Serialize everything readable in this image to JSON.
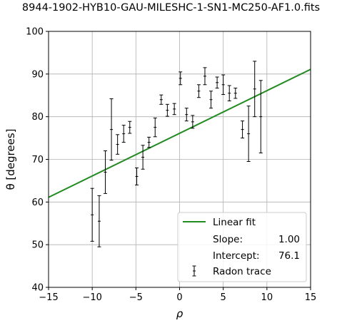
{
  "chart_data": {
    "type": "scatter",
    "title": "8944-1902-HYB10-GAU-MILESHC-1-SN1-MC250-AF1.0.fits",
    "xlabel": "ρ",
    "ylabel": "θ [degrees]",
    "xlim": [
      -15,
      15
    ],
    "ylim": [
      40,
      100
    ],
    "xticks": [
      "−15",
      "−10",
      "−5",
      "0",
      "5",
      "10",
      "15"
    ],
    "yticks": [
      "40",
      "50",
      "60",
      "70",
      "80",
      "90",
      "100"
    ],
    "grid": true,
    "legend_position": "lower-right",
    "fit": {
      "name": "Linear fit",
      "slope": 1.0,
      "intercept": 76.1,
      "color": "#228B22",
      "slope_label": "Slope:",
      "slope_value": "1.00",
      "intercept_label": "Intercept:",
      "intercept_value": "76.1"
    },
    "series": [
      {
        "name": "Radon trace",
        "color": "#000000",
        "points": [
          {
            "x": -10,
            "y": 57.0,
            "err": 6.2
          },
          {
            "x": -9.2,
            "y": 55.5,
            "err": 6.0
          },
          {
            "x": -8.5,
            "y": 67.0,
            "err": 5.0
          },
          {
            "x": -7.8,
            "y": 77.0,
            "err": 7.2
          },
          {
            "x": -7.1,
            "y": 73.5,
            "err": 2.3
          },
          {
            "x": -6.4,
            "y": 76.0,
            "err": 2.0
          },
          {
            "x": -5.7,
            "y": 77.5,
            "err": 1.4
          },
          {
            "x": -4.9,
            "y": 66.0,
            "err": 2.0
          },
          {
            "x": -4.2,
            "y": 70.5,
            "err": 2.8
          },
          {
            "x": -3.5,
            "y": 74.0,
            "err": 1.2
          },
          {
            "x": -2.8,
            "y": 77.5,
            "err": 2.2
          },
          {
            "x": -2.1,
            "y": 84.0,
            "err": 1.1
          },
          {
            "x": -1.4,
            "y": 81.5,
            "err": 1.4
          },
          {
            "x": -0.6,
            "y": 81.8,
            "err": 1.3
          },
          {
            "x": 0.1,
            "y": 89.0,
            "err": 1.5
          },
          {
            "x": 0.8,
            "y": 80.5,
            "err": 1.5
          },
          {
            "x": 1.5,
            "y": 78.8,
            "err": 1.5
          },
          {
            "x": 2.2,
            "y": 86.0,
            "err": 1.5
          },
          {
            "x": 2.9,
            "y": 89.5,
            "err": 2.0
          },
          {
            "x": 3.6,
            "y": 84.0,
            "err": 2.0
          },
          {
            "x": 4.3,
            "y": 88.0,
            "err": 1.3
          },
          {
            "x": 5.0,
            "y": 87.5,
            "err": 2.3
          },
          {
            "x": 5.7,
            "y": 85.5,
            "err": 1.8
          },
          {
            "x": 6.4,
            "y": 85.5,
            "err": 1.2
          },
          {
            "x": 7.2,
            "y": 77.0,
            "err": 2.0
          },
          {
            "x": 7.9,
            "y": 76.0,
            "err": 6.5
          },
          {
            "x": 8.6,
            "y": 86.5,
            "err": 6.5
          },
          {
            "x": 9.3,
            "y": 80.0,
            "err": 8.5
          }
        ]
      }
    ]
  }
}
